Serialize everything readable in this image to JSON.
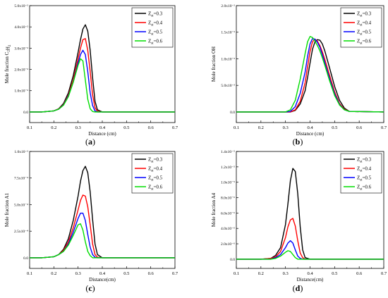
{
  "chart_data": [
    {
      "type": "line",
      "panel_label": "(a)",
      "panel_letter": "a",
      "xlabel": "Distance (cm)",
      "ylabel": "Mole fraction C₂H₂",
      "xlim": [
        0.1,
        0.7
      ],
      "ylim": [
        -0.005,
        0.05
      ],
      "x_ticks": [
        0.1,
        0.2,
        0.3,
        0.4,
        0.5,
        0.6,
        0.7
      ],
      "x_tick_labels": [
        "0.1",
        "0.2",
        "0.3",
        "0.4",
        "0.5",
        "0.6",
        "0.7"
      ],
      "y_ticks": [
        0.0,
        0.01,
        0.02,
        0.03,
        0.04,
        0.05
      ],
      "y_tick_labels": [
        "0.0",
        "1.0x10⁻²",
        "2.0x10⁻²",
        "3.0x10⁻²",
        "4.0x10⁻²",
        "5.0x10⁻²"
      ],
      "grid": false,
      "legend_position": "top-right",
      "x": [
        0.1,
        0.15,
        0.2,
        0.22,
        0.24,
        0.26,
        0.28,
        0.3,
        0.31,
        0.32,
        0.33,
        0.34,
        0.35,
        0.36,
        0.37,
        0.38,
        0.4,
        0.5,
        0.7
      ],
      "series": [
        {
          "name": "Z_st=0.3",
          "color": "#000000",
          "values": [
            0,
            0,
            0.0005,
            0.0015,
            0.004,
            0.009,
            0.017,
            0.028,
            0.034,
            0.039,
            0.041,
            0.038,
            0.029,
            0.016,
            0.005,
            0.001,
            0,
            0,
            0
          ]
        },
        {
          "name": "Z_st=0.4",
          "color": "#ff0000",
          "values": [
            0,
            0,
            0.0005,
            0.0014,
            0.0035,
            0.008,
            0.015,
            0.025,
            0.03,
            0.034,
            0.0345,
            0.029,
            0.019,
            0.008,
            0.002,
            0.0003,
            0,
            0,
            0
          ]
        },
        {
          "name": "Z_st=0.5",
          "color": "#0000ff",
          "values": [
            0,
            0,
            0.0005,
            0.0013,
            0.0033,
            0.0075,
            0.014,
            0.023,
            0.027,
            0.029,
            0.027,
            0.019,
            0.009,
            0.003,
            0.0005,
            0,
            0,
            0,
            0
          ]
        },
        {
          "name": "Z_st=0.6",
          "color": "#00dd00",
          "values": [
            0,
            0,
            0.0005,
            0.0013,
            0.0032,
            0.0072,
            0.014,
            0.022,
            0.025,
            0.024,
            0.015,
            0.006,
            0.0015,
            0.0002,
            0,
            0,
            0,
            0,
            0
          ]
        }
      ]
    },
    {
      "type": "line",
      "panel_label": "(b)",
      "panel_letter": "b",
      "xlabel": "Distance (cm)",
      "ylabel": "Mole fraction OH",
      "xlim": [
        0.1,
        0.7
      ],
      "ylim": [
        -0.002,
        0.02
      ],
      "x_ticks": [
        0.1,
        0.2,
        0.3,
        0.4,
        0.5,
        0.6,
        0.7
      ],
      "x_tick_labels": [
        "0.1",
        "0.2",
        "0.3",
        "0.4",
        "0.5",
        "0.6",
        "0.7"
      ],
      "y_ticks": [
        0.0,
        0.005,
        0.01,
        0.015,
        0.02
      ],
      "y_tick_labels": [
        "0.0",
        "5.0x10⁻³",
        "1.0x10⁻²",
        "1.5x10⁻²",
        "2.0x10⁻²"
      ],
      "grid": false,
      "legend_position": "top-right",
      "x": [
        0.1,
        0.3,
        0.32,
        0.34,
        0.36,
        0.38,
        0.39,
        0.4,
        0.41,
        0.42,
        0.43,
        0.44,
        0.45,
        0.46,
        0.48,
        0.5,
        0.52,
        0.54,
        0.56,
        0.7
      ],
      "series": [
        {
          "name": "Z_st=0.3",
          "color": "#000000",
          "values": [
            0,
            0,
            0,
            0.0003,
            0.0015,
            0.004,
            0.0065,
            0.0092,
            0.0118,
            0.0132,
            0.0136,
            0.0135,
            0.0128,
            0.0115,
            0.0082,
            0.0048,
            0.0022,
            0.0007,
            0.0001,
            0
          ]
        },
        {
          "name": "Z_st=0.4",
          "color": "#ff0000",
          "values": [
            0,
            0,
            0,
            0.0004,
            0.002,
            0.0055,
            0.0085,
            0.0114,
            0.0132,
            0.0137,
            0.0133,
            0.0125,
            0.0113,
            0.0099,
            0.0068,
            0.0038,
            0.0016,
            0.0005,
            0.0001,
            0
          ]
        },
        {
          "name": "Z_st=0.5",
          "color": "#0000ff",
          "values": [
            0,
            0,
            0.0001,
            0.001,
            0.0035,
            0.0075,
            0.0105,
            0.0128,
            0.0138,
            0.0137,
            0.0131,
            0.0122,
            0.0108,
            0.0093,
            0.0062,
            0.0034,
            0.0014,
            0.0004,
            0.0001,
            0
          ]
        },
        {
          "name": "Z_st=0.6",
          "color": "#00dd00",
          "values": [
            0,
            0,
            0.0004,
            0.0022,
            0.0062,
            0.011,
            0.0132,
            0.0142,
            0.014,
            0.0133,
            0.0125,
            0.0115,
            0.0102,
            0.0088,
            0.0058,
            0.0031,
            0.0013,
            0.0004,
            0.0001,
            0
          ]
        }
      ]
    },
    {
      "type": "line",
      "panel_label": "(c)",
      "panel_letter": "c",
      "xlabel": "Distance(cm)",
      "ylabel": "Mole fraction A1",
      "xlim": [
        0.1,
        0.7
      ],
      "ylim": [
        -0.0001,
        0.001
      ],
      "x_ticks": [
        0.1,
        0.2,
        0.3,
        0.4,
        0.5,
        0.6,
        0.7
      ],
      "x_tick_labels": [
        "0.1",
        "0.2",
        "0.3",
        "0.4",
        "0.5",
        "0.6",
        "0.7"
      ],
      "y_ticks": [
        0.0,
        0.00025,
        0.0005,
        0.00075,
        0.001
      ],
      "y_tick_labels": [
        "0.0",
        "2.5x10⁻⁴",
        "5.0x10⁻⁴",
        "7.5x10⁻⁴",
        "1.0x10⁻³"
      ],
      "grid": false,
      "legend_position": "top-right",
      "x": [
        0.1,
        0.15,
        0.2,
        0.22,
        0.24,
        0.26,
        0.28,
        0.3,
        0.31,
        0.32,
        0.33,
        0.34,
        0.35,
        0.36,
        0.37,
        0.38,
        0.4,
        0.5,
        0.7
      ],
      "series": [
        {
          "name": "Z_st=0.3",
          "color": "#000000",
          "values": [
            0,
            0,
            1e-05,
            3e-05,
            8e-05,
            0.00018,
            0.00035,
            0.00058,
            0.00072,
            0.00082,
            0.00086,
            0.0008,
            0.00062,
            0.00036,
            0.00013,
            3e-05,
            0,
            0,
            0
          ]
        },
        {
          "name": "Z_st=0.4",
          "color": "#ff0000",
          "values": [
            0,
            0,
            1e-05,
            3e-05,
            7e-05,
            0.00015,
            0.00028,
            0.00045,
            0.00054,
            0.00059,
            0.00058,
            0.00048,
            0.00031,
            0.00013,
            3e-05,
            5e-06,
            0,
            0,
            0
          ]
        },
        {
          "name": "Z_st=0.5",
          "color": "#0000ff",
          "values": [
            0,
            0,
            1e-05,
            3e-05,
            6e-05,
            0.00013,
            0.00024,
            0.00037,
            0.00042,
            0.00042,
            0.00035,
            0.00022,
            0.0001,
            3e-05,
            5e-06,
            0,
            0,
            0,
            0
          ]
        },
        {
          "name": "Z_st=0.6",
          "color": "#00dd00",
          "values": [
            0,
            0,
            1e-05,
            3e-05,
            6e-05,
            0.00012,
            0.00021,
            0.00031,
            0.00032,
            0.00026,
            0.00015,
            6e-05,
            2e-05,
            0,
            0,
            0,
            0,
            0,
            0
          ]
        }
      ]
    },
    {
      "type": "line",
      "panel_label": "(d)",
      "panel_letter": "d",
      "xlabel": "Distance(cm)",
      "ylabel": "Mole fraction A4",
      "xlim": [
        0.1,
        0.7
      ],
      "ylim": [
        -1.2e-06,
        1.4e-05
      ],
      "x_ticks": [
        0.1,
        0.2,
        0.3,
        0.4,
        0.5,
        0.6,
        0.7
      ],
      "x_tick_labels": [
        "0.1",
        "0.2",
        "0.3",
        "0.4",
        "0.5",
        "0.6",
        "0.7"
      ],
      "y_ticks": [
        0.0,
        2e-06,
        4e-06,
        6e-06,
        8e-06,
        1e-05,
        1.2e-05,
        1.4e-05
      ],
      "y_tick_labels": [
        "0.0",
        "2.0x10⁻⁶",
        "4.0x10⁻⁶",
        "6.0x10⁻⁶",
        "8.0x10⁻⁶",
        "1.0x10⁻⁵",
        "1.2x10⁻⁵",
        "1.4x10⁻⁵"
      ],
      "grid": false,
      "legend_position": "top-right",
      "x": [
        0.1,
        0.2,
        0.24,
        0.26,
        0.28,
        0.3,
        0.31,
        0.32,
        0.33,
        0.34,
        0.35,
        0.36,
        0.37,
        0.38,
        0.4,
        0.5,
        0.7
      ],
      "series": [
        {
          "name": "Z_st=0.3",
          "color": "#000000",
          "values": [
            0,
            0,
            1e-07,
            5e-07,
            1.5e-06,
            4.5e-06,
            7.2e-06,
            1.02e-05,
            1.18e-05,
            1.14e-05,
            8.5e-06,
            4.2e-06,
            1.2e-06,
            2e-07,
            0,
            0,
            0
          ]
        },
        {
          "name": "Z_st=0.4",
          "color": "#ff0000",
          "values": [
            0,
            0,
            1e-07,
            3e-07,
            1e-06,
            2.8e-06,
            4.2e-06,
            5.1e-06,
            5.3e-06,
            4.3e-06,
            2.4e-06,
            8e-07,
            2e-07,
            0,
            0,
            0,
            0
          ]
        },
        {
          "name": "Z_st=0.5",
          "color": "#0000ff",
          "values": [
            0,
            0,
            0,
            2e-07,
            6e-07,
            1.5e-06,
            2.1e-06,
            2.4e-06,
            2.1e-06,
            1.2e-06,
            4e-07,
            1e-07,
            0,
            0,
            0,
            0,
            0
          ]
        },
        {
          "name": "Z_st=0.6",
          "color": "#00dd00",
          "values": [
            0,
            0,
            0,
            1e-07,
            4e-07,
            9e-07,
            1.1e-06,
            1e-06,
            6e-07,
            2e-07,
            0,
            0,
            0,
            0,
            0,
            0,
            0
          ]
        }
      ]
    }
  ]
}
